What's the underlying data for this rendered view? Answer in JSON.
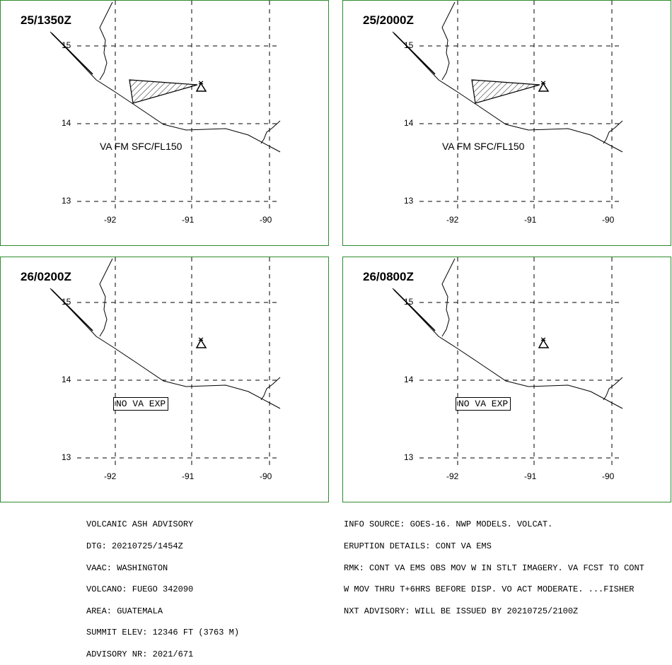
{
  "panels": [
    {
      "title": "25/1350Z",
      "label": "VA FM SFC/FL150",
      "box": ""
    },
    {
      "title": "25/2000Z",
      "label": "VA FM SFC/FL150",
      "box": ""
    },
    {
      "title": "26/0200Z",
      "label": "",
      "box": "NO VA EXP"
    },
    {
      "title": "26/0800Z",
      "label": "",
      "box": "NO VA EXP"
    }
  ],
  "latitudes": [
    "15",
    "14",
    "13"
  ],
  "longitudes": [
    "-92",
    "-91",
    "-90"
  ],
  "colors": {
    "frame": "#2e8b2e",
    "ink": "#000000"
  },
  "icons": {
    "volcano": "volcano-icon",
    "ash_area": "hatched-ash-polygon"
  },
  "advisory_left": [
    "VOLCANIC ASH ADVISORY",
    "DTG: 20210725/1454Z",
    "VAAC: WASHINGTON",
    "VOLCANO: FUEGO 342090",
    "AREA: GUATEMALA",
    "SUMMIT ELEV: 12346 FT (3763 M)",
    "ADVISORY NR: 2021/671"
  ],
  "advisory_right": [
    "INFO SOURCE: GOES-16. NWP MODELS. VOLCAT.",
    "ERUPTION DETAILS: CONT VA EMS",
    "RMK: CONT VA EMS OBS MOV W IN STLT IMAGERY. VA FCST TO CONT",
    "W MOV THRU T+6HRS BEFORE DISP. VO ACT MODERATE. ...FISHER",
    "NXT ADVISORY: WILL BE ISSUED BY 20210725/2100Z"
  ]
}
